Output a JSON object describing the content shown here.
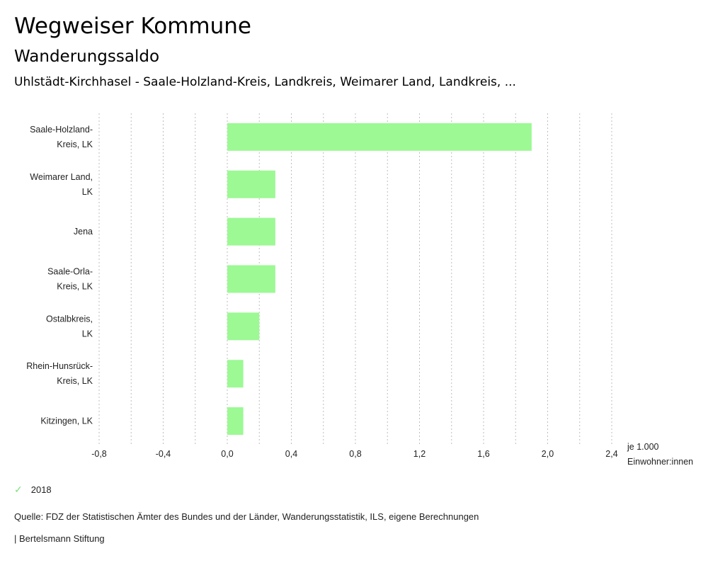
{
  "header": {
    "title": "Wegweiser Kommune",
    "subtitle": "Wanderungssaldo",
    "description": "Uhlstädt-Kirchhasel - Saale-Holzland-Kreis, Landkreis, Weimarer Land, Landkreis, ..."
  },
  "chart_data": {
    "type": "bar",
    "orientation": "horizontal",
    "categories": [
      [
        "Saale-Holzland-",
        "Kreis, LK"
      ],
      [
        "Weimarer Land,",
        "LK"
      ],
      [
        "Jena"
      ],
      [
        "Saale-Orla-",
        "Kreis, LK"
      ],
      [
        "Ostalbkreis,",
        "LK"
      ],
      [
        "Rhein-Hunsrück-",
        "Kreis, LK"
      ],
      [
        "Kitzingen, LK"
      ]
    ],
    "series": [
      {
        "name": "2018",
        "color": "#9cf994",
        "values": [
          1.9,
          0.3,
          0.3,
          0.3,
          0.2,
          0.1,
          0.1
        ]
      }
    ],
    "xlim": [
      -0.8,
      2.4
    ],
    "xticks": [
      -0.8,
      -0.4,
      0.0,
      0.4,
      0.8,
      1.2,
      1.6,
      2.0,
      2.4
    ],
    "xtick_labels": [
      "-0,8",
      "-0,4",
      "0,0",
      "0,4",
      "0,8",
      "1,2",
      "1,6",
      "2,0",
      "2,4"
    ],
    "gridlines": [
      -0.8,
      -0.6,
      -0.4,
      -0.2,
      0.0,
      0.2,
      0.4,
      0.6,
      0.8,
      1.0,
      1.2,
      1.4,
      1.6,
      1.8,
      2.0,
      2.2,
      2.4
    ],
    "grid": true,
    "xlabel": [
      "je 1.000",
      "Einwohner:innen"
    ],
    "ylabel": "",
    "legend_position": "bottom-left"
  },
  "legend": {
    "items": [
      {
        "label": "2018",
        "icon": "check-icon",
        "color": "#7ee27e"
      }
    ]
  },
  "footer": {
    "source": "Quelle: FDZ der Statistischen Ämter des Bundes und der Länder, Wanderungsstatistik, ILS, eigene Berechnungen",
    "credit": "| Bertelsmann Stiftung"
  }
}
